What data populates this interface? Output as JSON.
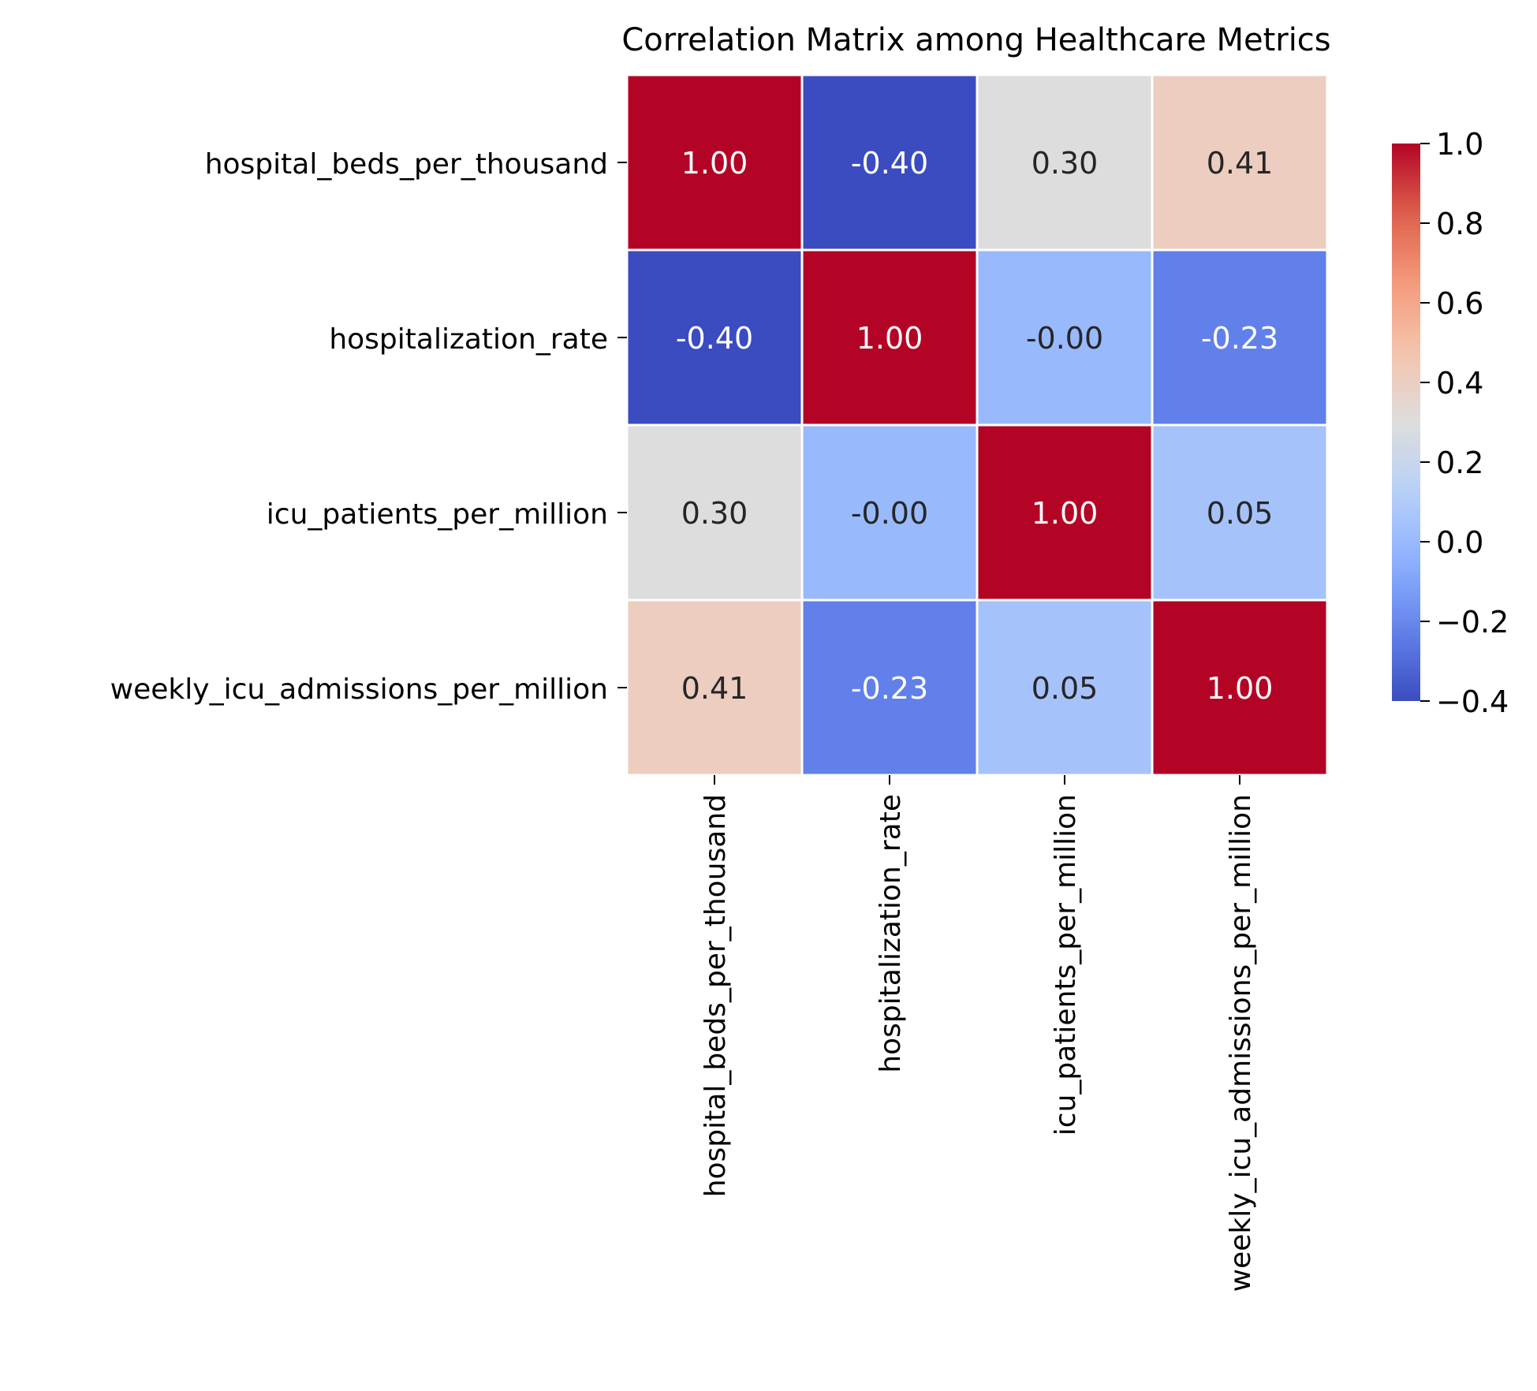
{
  "chart_data": {
    "type": "heatmap",
    "title": "Correlation Matrix among Healthcare Metrics",
    "xlabel": "",
    "ylabel": "",
    "row_labels": [
      "hospital_beds_per_thousand",
      "hospitalization_rate",
      "icu_patients_per_million",
      "weekly_icu_admissions_per_million"
    ],
    "col_labels": [
      "hospital_beds_per_thousand",
      "hospitalization_rate",
      "icu_patients_per_million",
      "weekly_icu_admissions_per_million"
    ],
    "values": [
      [
        1.0,
        -0.4,
        0.3,
        0.41
      ],
      [
        -0.4,
        1.0,
        -0.0,
        -0.23
      ],
      [
        0.3,
        -0.0,
        1.0,
        0.05
      ],
      [
        0.41,
        -0.23,
        0.05,
        1.0
      ]
    ],
    "annotations": [
      [
        "1.00",
        "-0.40",
        "0.30",
        "0.41"
      ],
      [
        "-0.40",
        "1.00",
        "-0.00",
        "-0.23"
      ],
      [
        "0.30",
        "-0.00",
        "1.00",
        "0.05"
      ],
      [
        "0.41",
        "-0.23",
        "0.05",
        "1.00"
      ]
    ],
    "colormap": "coolwarm",
    "colorbar": {
      "range": [
        -0.4,
        1.0
      ],
      "ticks": [
        1.0,
        0.8,
        0.6,
        0.4,
        0.2,
        0.0,
        -0.2,
        -0.4
      ],
      "tick_labels": [
        "1.0",
        "0.8",
        "0.6",
        "0.4",
        "0.2",
        "0.0",
        "−0.2",
        "−0.4"
      ]
    }
  }
}
